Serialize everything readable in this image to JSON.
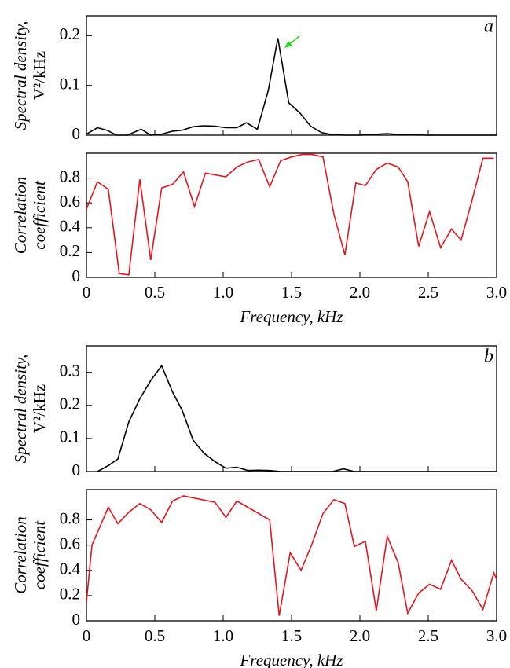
{
  "chart_data": [
    {
      "type": "line",
      "panel_label": "a",
      "ylabel": [
        "Spectral density,",
        "V²/kHz"
      ],
      "xlim": [
        0,
        3
      ],
      "xticks": [
        0,
        0.5,
        1,
        1.5,
        2,
        2.5,
        3
      ],
      "ylim": [
        0,
        0.24
      ],
      "yticks": [
        0,
        0.1,
        0.2
      ],
      "series": [
        {
          "color": "#000000",
          "x": [
            0,
            0.08,
            0.15,
            0.22,
            0.3,
            0.4,
            0.47,
            0.55,
            0.63,
            0.7,
            0.78,
            0.86,
            0.94,
            1.02,
            1.1,
            1.17,
            1.25,
            1.33,
            1.4,
            1.48,
            1.56,
            1.64,
            1.72,
            1.8,
            1.9,
            2.0,
            2.2,
            2.3,
            2.5,
            3.0
          ],
          "values": [
            0.002,
            0.015,
            0.01,
            0,
            0,
            0.012,
            0,
            0.002,
            0.008,
            0.01,
            0.017,
            0.019,
            0.018,
            0.015,
            0.015,
            0.025,
            0.012,
            0.09,
            0.195,
            0.065,
            0.045,
            0.018,
            0.005,
            0.001,
            0,
            0,
            0.003,
            0.001,
            0,
            0
          ]
        }
      ]
    },
    {
      "type": "line",
      "ylabel": [
        "Correlation",
        "coefficient"
      ],
      "xlabel": "Frequency, kHz",
      "xlim": [
        0,
        3
      ],
      "xticks": [
        0,
        0.5,
        {
          "value": 1,
          "label": "1.0"
        },
        1.5,
        {
          "value": 2,
          "label": "2.0"
        },
        2.5,
        {
          "value": 3,
          "label": "3.0"
        }
      ],
      "ylim": [
        0,
        1.0
      ],
      "yticks": [
        0,
        0.2,
        0.4,
        0.6,
        0.8
      ],
      "series": [
        {
          "color": "#e8141c",
          "x": [
            0,
            0.08,
            0.16,
            0.24,
            0.31,
            0.39,
            0.47,
            0.55,
            0.63,
            0.71,
            0.79,
            0.87,
            1.02,
            1.1,
            1.18,
            1.26,
            1.34,
            1.42,
            1.5,
            1.58,
            1.65,
            1.73,
            1.81,
            1.89,
            1.97,
            2.04,
            2.12,
            2.2,
            2.28,
            2.35,
            2.43,
            2.51,
            2.59,
            2.67,
            2.74,
            2.82,
            2.9,
            2.98
          ],
          "values": [
            0.55,
            0.77,
            0.71,
            0.03,
            0.02,
            0.79,
            0.14,
            0.72,
            0.75,
            0.85,
            0.57,
            0.84,
            0.81,
            0.89,
            0.93,
            0.95,
            0.73,
            0.94,
            0.97,
            0.99,
            0.99,
            0.97,
            0.51,
            0.18,
            0.76,
            0.74,
            0.87,
            0.92,
            0.89,
            0.77,
            0.25,
            0.53,
            0.24,
            0.39,
            0.3,
            0.62,
            0.96,
            0.96
          ]
        }
      ]
    },
    {
      "type": "line",
      "panel_label": "b",
      "ylabel": [
        "Spectral density,",
        "V²/kHz"
      ],
      "xlim": [
        0,
        3
      ],
      "xticks": [
        0,
        0.5,
        1,
        1.5,
        2,
        2.5,
        3
      ],
      "ylim": [
        0,
        0.38
      ],
      "yticks": [
        0,
        0.1,
        0.2,
        0.3
      ],
      "series": [
        {
          "color": "#000000",
          "x": [
            0.08,
            0.16,
            0.23,
            0.31,
            0.39,
            0.47,
            0.55,
            0.63,
            0.7,
            0.78,
            0.86,
            0.94,
            1.02,
            1.1,
            1.18,
            1.26,
            1.34,
            1.42,
            1.8,
            1.88,
            1.96,
            3.0
          ],
          "values": [
            0,
            0.018,
            0.038,
            0.15,
            0.22,
            0.275,
            0.32,
            0.24,
            0.185,
            0.095,
            0.055,
            0.03,
            0.01,
            0.013,
            0.003,
            0.004,
            0.003,
            0,
            0,
            0.008,
            0,
            0
          ]
        }
      ]
    },
    {
      "type": "line",
      "ylabel": [
        "Correlation",
        "coefficient"
      ],
      "xlabel": "Frequency, kHz",
      "xlim": [
        0,
        3
      ],
      "xticks": [
        0,
        0.5,
        {
          "value": 1,
          "label": "1.0"
        },
        1.5,
        {
          "value": 2,
          "label": "2.0"
        },
        2.5,
        {
          "value": 3,
          "label": "3.0"
        }
      ],
      "ylim": [
        0,
        1.04
      ],
      "yticks": [
        0,
        0.2,
        0.4,
        0.6,
        0.8
      ],
      "series": [
        {
          "color": "#e8141c",
          "x": [
            0,
            0.04,
            0.16,
            0.23,
            0.31,
            0.39,
            0.47,
            0.55,
            0.63,
            0.71,
            0.94,
            1.02,
            1.1,
            1.34,
            1.41,
            1.49,
            1.57,
            1.65,
            1.73,
            1.81,
            1.89,
            1.96,
            2.04,
            2.12,
            2.2,
            2.28,
            2.35,
            2.43,
            2.51,
            2.59,
            2.67,
            2.74,
            2.82,
            2.9,
            2.98,
            3.0
          ],
          "values": [
            0.15,
            0.6,
            0.9,
            0.77,
            0.86,
            0.93,
            0.88,
            0.78,
            0.95,
            0.99,
            0.94,
            0.82,
            0.95,
            0.8,
            0.04,
            0.54,
            0.4,
            0.61,
            0.85,
            0.96,
            0.93,
            0.59,
            0.63,
            0.08,
            0.67,
            0.46,
            0.06,
            0.22,
            0.29,
            0.25,
            0.48,
            0.33,
            0.24,
            0.09,
            0.38,
            0.33
          ]
        }
      ]
    }
  ]
}
